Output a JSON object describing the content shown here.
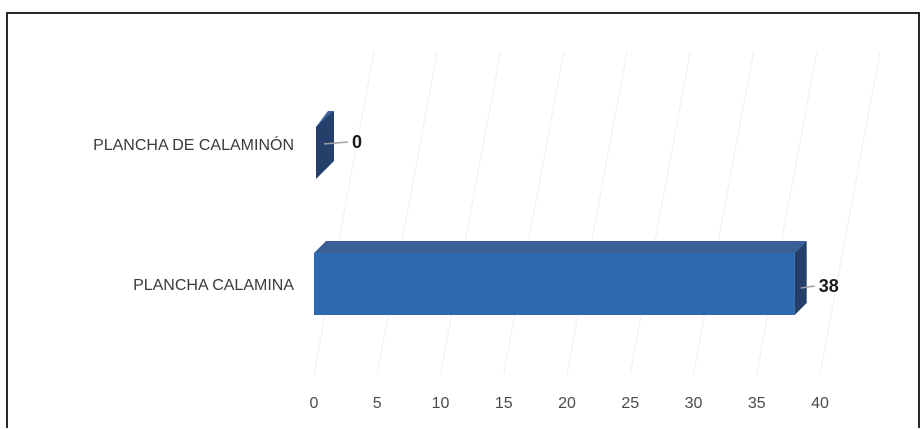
{
  "chart_data": {
    "type": "bar",
    "orientation": "horizontal",
    "three_d": true,
    "categories": [
      "PLANCHA DE CALAMINÓN",
      "PLANCHA CALAMINA"
    ],
    "values": [
      0,
      38
    ],
    "data_labels": [
      "0",
      "38"
    ],
    "xlim": [
      0,
      40
    ],
    "x_ticks": [
      "0",
      "5",
      "10",
      "15",
      "20",
      "25",
      "30",
      "35",
      "40"
    ],
    "title": "",
    "xlabel": "",
    "ylabel": "",
    "grid": true,
    "legend": "none",
    "colors": {
      "bar_front": "#2E6AB0",
      "bar_top": "#3A5F97",
      "bar_side": "#233F6A",
      "leader_line": "#A0A0A0",
      "grid": "#EFEFEF"
    }
  }
}
